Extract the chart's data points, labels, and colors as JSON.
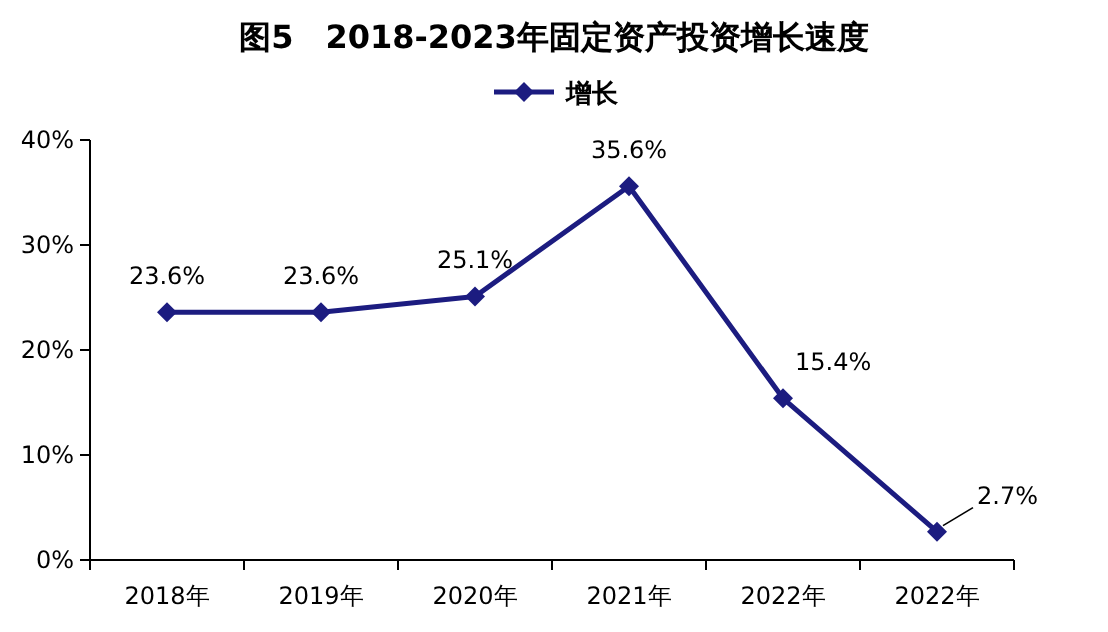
{
  "chart_data": {
    "type": "line",
    "title": "图5　2018-2023年固定资产投资增长速度",
    "categories": [
      "2018年",
      "2019年",
      "2020年",
      "2021年",
      "2022年",
      "2022年"
    ],
    "series": [
      {
        "name": "增长",
        "color": "#1c1c80",
        "values": [
          23.6,
          23.6,
          25.1,
          35.6,
          15.4,
          2.7
        ],
        "value_labels": [
          "23.6%",
          "23.6%",
          "25.1%",
          "35.6%",
          "15.4%",
          "2.7%"
        ]
      }
    ],
    "ylim": [
      0,
      40
    ],
    "yticks": [
      {
        "value": 0,
        "label": "0%"
      },
      {
        "value": 10,
        "label": "10%"
      },
      {
        "value": 20,
        "label": "20%"
      },
      {
        "value": 30,
        "label": "30%"
      },
      {
        "value": 40,
        "label": "40%"
      }
    ],
    "grid": false,
    "legend": "top",
    "marker": "diamond",
    "line_style": "solid"
  }
}
